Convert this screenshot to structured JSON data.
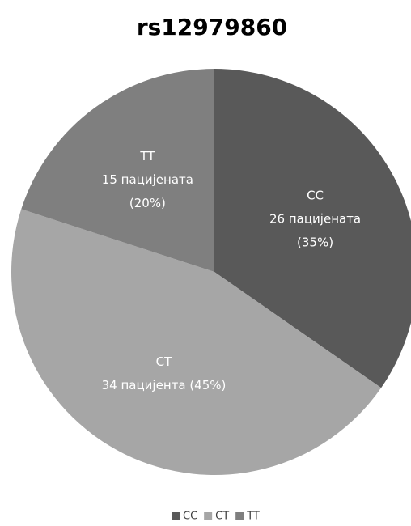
{
  "chart_data": {
    "type": "pie",
    "title": "rs12979860",
    "categories": [
      "CC",
      "CT",
      "TT"
    ],
    "values": [
      26,
      34,
      15
    ],
    "value_labels": [
      [
        "26 пацијената",
        "(35%)"
      ],
      [
        "34 пацијента (45%)"
      ],
      [
        "15 пацијената",
        "(20%)"
      ]
    ],
    "colors": [
      "#595959",
      "#a6a6a6",
      "#7f7f7f"
    ],
    "legend": "bottom"
  }
}
